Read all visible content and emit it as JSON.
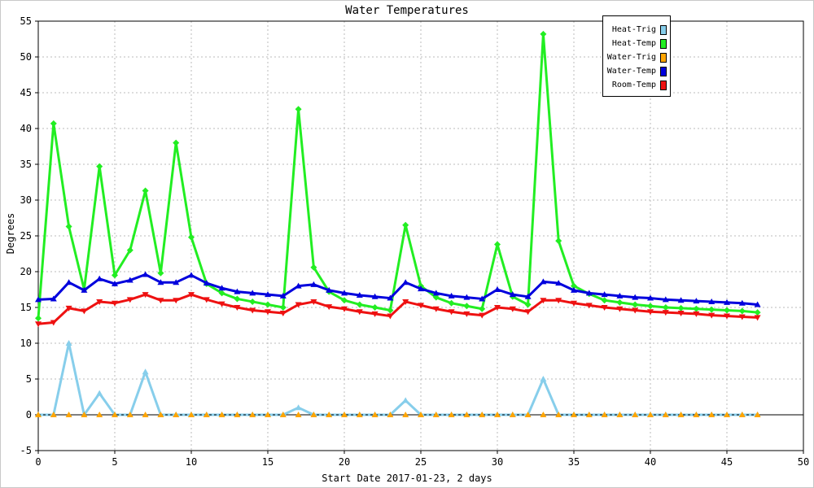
{
  "chart_data": {
    "type": "line",
    "title": "Water Temperatures",
    "xlabel": "Start Date 2017-01-23, 2 days",
    "ylabel": "Degrees",
    "xlim": [
      0,
      50
    ],
    "ylim": [
      -5,
      55
    ],
    "x_ticks": [
      0,
      5,
      10,
      15,
      20,
      25,
      30,
      35,
      40,
      45,
      50
    ],
    "y_ticks": [
      -5,
      0,
      5,
      10,
      15,
      20,
      25,
      30,
      35,
      40,
      45,
      50,
      55
    ],
    "grid": true,
    "legend_position": "top-right",
    "x": [
      0,
      1,
      2,
      3,
      4,
      5,
      6,
      7,
      8,
      9,
      10,
      11,
      12,
      13,
      14,
      15,
      16,
      17,
      18,
      19,
      20,
      21,
      22,
      23,
      24,
      25,
      26,
      27,
      28,
      29,
      30,
      31,
      32,
      33,
      34,
      35,
      36,
      37,
      38,
      39,
      40,
      41,
      42,
      43,
      44,
      45,
      46,
      47
    ],
    "series": [
      {
        "name": "Heat-Trig",
        "color": "#87ceeb",
        "marker": "triangle-up",
        "values": [
          0,
          0,
          10,
          0,
          3,
          0,
          0,
          6,
          0,
          0,
          0,
          0,
          0,
          0,
          0,
          0,
          0,
          1,
          0,
          0,
          0,
          0,
          0,
          0,
          2,
          0,
          0,
          0,
          0,
          0,
          0,
          0,
          0,
          5,
          0,
          0,
          0,
          0,
          0,
          0,
          0,
          0,
          0,
          0,
          0,
          0,
          0,
          0
        ]
      },
      {
        "name": "Heat-Temp",
        "color": "#22ee22",
        "marker": "diamond",
        "values": [
          13.5,
          40.7,
          26.3,
          17.5,
          34.7,
          19.5,
          23.0,
          31.3,
          19.8,
          38.0,
          24.8,
          18.3,
          17.0,
          16.2,
          15.8,
          15.4,
          15.0,
          42.7,
          20.6,
          17.2,
          16.0,
          15.4,
          15.0,
          14.6,
          26.5,
          18.0,
          16.4,
          15.6,
          15.2,
          14.8,
          23.8,
          16.5,
          15.4,
          53.2,
          24.3,
          18.0,
          16.9,
          16.0,
          15.7,
          15.4,
          15.2,
          15.0,
          14.9,
          14.8,
          14.7,
          14.6,
          14.5,
          14.3
        ]
      },
      {
        "name": "Water-Trig",
        "color": "#ffa500",
        "marker": "triangle-up",
        "values": [
          0,
          0,
          0,
          0,
          0,
          0,
          0,
          0,
          0,
          0,
          0,
          0,
          0,
          0,
          0,
          0,
          0,
          0,
          0,
          0,
          0,
          0,
          0,
          0,
          0,
          0,
          0,
          0,
          0,
          0,
          0,
          0,
          0,
          0,
          0,
          0,
          0,
          0,
          0,
          0,
          0,
          0,
          0,
          0,
          0,
          0,
          0,
          0
        ]
      },
      {
        "name": "Water-Temp",
        "color": "#0000dd",
        "marker": "triangle-up",
        "values": [
          16.1,
          16.2,
          18.5,
          17.4,
          19.0,
          18.3,
          18.8,
          19.6,
          18.5,
          18.5,
          19.5,
          18.4,
          17.7,
          17.2,
          17.0,
          16.8,
          16.6,
          18.0,
          18.2,
          17.4,
          17.0,
          16.7,
          16.5,
          16.3,
          18.5,
          17.6,
          17.0,
          16.6,
          16.4,
          16.2,
          17.5,
          16.8,
          16.5,
          18.6,
          18.4,
          17.4,
          17.0,
          16.8,
          16.6,
          16.4,
          16.3,
          16.1,
          16.0,
          15.9,
          15.8,
          15.7,
          15.6,
          15.4
        ]
      },
      {
        "name": "Room-Temp",
        "color": "#ee1111",
        "marker": "triangle-down",
        "values": [
          12.7,
          12.9,
          14.9,
          14.5,
          15.8,
          15.6,
          16.1,
          16.8,
          16.0,
          16.0,
          16.8,
          16.1,
          15.5,
          15.0,
          14.6,
          14.4,
          14.2,
          15.4,
          15.8,
          15.1,
          14.8,
          14.4,
          14.1,
          13.8,
          15.8,
          15.3,
          14.8,
          14.4,
          14.1,
          13.9,
          15.0,
          14.8,
          14.4,
          16.0,
          16.0,
          15.6,
          15.3,
          15.0,
          14.8,
          14.6,
          14.4,
          14.3,
          14.2,
          14.1,
          13.9,
          13.8,
          13.7,
          13.6
        ]
      }
    ],
    "legend_order": [
      "Heat-Trig",
      "Heat-Temp",
      "Water-Trig",
      "Water-Temp",
      "Room-Temp"
    ]
  }
}
